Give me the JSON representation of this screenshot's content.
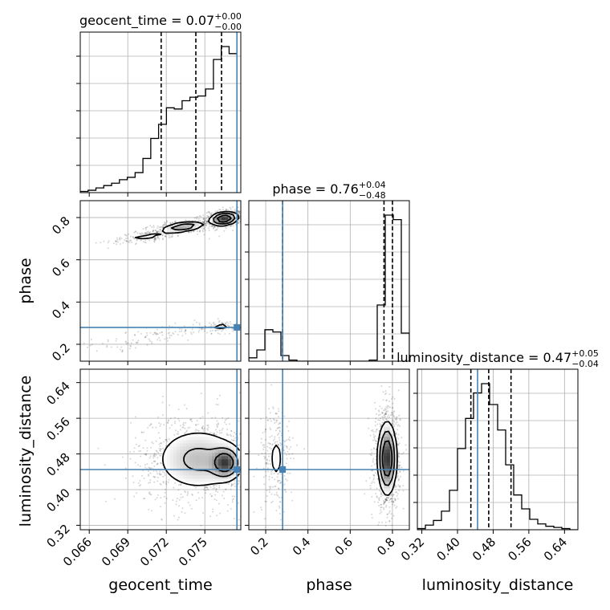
{
  "chart_data": {
    "type": "corner",
    "parameters": [
      "geocent_time",
      "phase",
      "luminosity_distance"
    ],
    "truth_color": "#4682b4",
    "line_color": "#000000",
    "titles": [
      {
        "parameter": "geocent_time",
        "lead": "geocent_time = 0.07",
        "plus": "+0.00",
        "minus": "−0.00"
      },
      {
        "parameter": "phase",
        "lead": "phase = 0.76",
        "plus": "+0.04",
        "minus": "−0.48"
      },
      {
        "parameter": "luminosity_distance",
        "lead": "luminosity_distance = 0.47",
        "plus": "+0.05",
        "minus": "−0.04"
      }
    ],
    "axes": {
      "geocent_time": {
        "range": [
          0.0653,
          0.0778
        ],
        "ticks": [
          0.066,
          0.069,
          0.072,
          0.075
        ],
        "tick_labels": [
          "0.066",
          "0.069",
          "0.072",
          "0.075"
        ]
      },
      "phase": {
        "range": [
          0.12,
          0.88
        ],
        "ticks": [
          0.2,
          0.4,
          0.6,
          0.8
        ],
        "tick_labels": [
          "0.2",
          "0.4",
          "0.6",
          "0.8"
        ]
      },
      "luminosity_distance": {
        "range": [
          0.31,
          0.67
        ],
        "ticks": [
          0.32,
          0.4,
          0.48,
          0.56,
          0.64
        ],
        "tick_labels": [
          "0.32",
          "0.40",
          "0.48",
          "0.56",
          "0.64"
        ]
      }
    },
    "truths": {
      "geocent_time": 0.0775,
      "phase": 0.28,
      "luminosity_distance": 0.445
    },
    "quantiles": {
      "geocent_time": [
        0.0716,
        0.0743,
        0.0763
      ],
      "phase": [
        0.28,
        0.76,
        0.8
      ],
      "luminosity_distance": [
        0.43,
        0.47,
        0.52
      ]
    },
    "histograms": {
      "geocent_time": {
        "edges": [
          0.0653,
          0.06591,
          0.06652,
          0.06713,
          0.06774,
          0.06835,
          0.06896,
          0.06957,
          0.07018,
          0.07079,
          0.0714,
          0.07201,
          0.07262,
          0.07323,
          0.07384,
          0.07445,
          0.07506,
          0.07567,
          0.07628,
          0.07689,
          0.0775
        ],
        "counts": [
          1,
          2,
          4,
          6,
          8,
          11,
          13,
          17,
          29,
          46,
          58,
          72,
          71,
          78,
          81,
          82,
          88,
          113,
          124,
          118
        ]
      },
      "phase": {
        "edges": [
          0.12,
          0.158,
          0.196,
          0.234,
          0.272,
          0.31,
          0.348,
          0.386,
          0.424,
          0.462,
          0.5,
          0.538,
          0.576,
          0.614,
          0.652,
          0.69,
          0.728,
          0.766,
          0.804,
          0.842,
          0.88
        ],
        "counts": [
          3,
          10,
          28,
          26,
          5,
          1,
          0,
          0,
          0,
          0,
          0,
          0,
          0,
          0,
          0,
          1,
          50,
          130,
          126,
          25
        ]
      },
      "luminosity_distance": {
        "edges": [
          0.31,
          0.328,
          0.346,
          0.364,
          0.382,
          0.4,
          0.418,
          0.436,
          0.454,
          0.472,
          0.49,
          0.508,
          0.526,
          0.544,
          0.562,
          0.58,
          0.598,
          0.616,
          0.634,
          0.652,
          0.67
        ],
        "counts": [
          1,
          4,
          8,
          16,
          34,
          70,
          96,
          118,
          126,
          108,
          86,
          56,
          30,
          18,
          9,
          5,
          3,
          2,
          1,
          0
        ]
      }
    },
    "modes_2d": {
      "phase_vs_geocent_time": [
        {
          "center": [
            0.0765,
            0.795
          ],
          "spread": [
            0.00055,
            0.016
          ],
          "corr": 0.2,
          "weight": 0.45
        },
        {
          "center": [
            0.0733,
            0.755
          ],
          "spread": [
            0.0009,
            0.014
          ],
          "corr": 0.5,
          "weight": 0.3
        },
        {
          "center": [
            0.0705,
            0.71
          ],
          "spread": [
            0.0011,
            0.013
          ],
          "corr": 0.6,
          "weight": 0.1
        },
        {
          "center": [
            0.0763,
            0.285
          ],
          "spread": [
            0.0007,
            0.012
          ],
          "corr": 0.2,
          "weight": 0.07
        },
        {
          "center": [
            0.0723,
            0.255
          ],
          "spread": [
            0.0013,
            0.016
          ],
          "corr": 0.6,
          "weight": 0.05
        },
        {
          "center": [
            0.0685,
            0.205
          ],
          "spread": [
            0.0014,
            0.018
          ],
          "corr": 0.6,
          "weight": 0.03
        }
      ],
      "luminosity_distance_vs_geocent_time": [
        {
          "center": [
            0.0745,
            0.468
          ],
          "spread": [
            0.0018,
            0.038
          ],
          "corr": 0.0,
          "weight": 0.75
        },
        {
          "center": [
            0.0766,
            0.46
          ],
          "spread": [
            0.0006,
            0.018
          ],
          "corr": 0.0,
          "weight": 0.25
        }
      ],
      "luminosity_distance_vs_phase": [
        {
          "center": [
            0.775,
            0.47
          ],
          "spread": [
            0.022,
            0.04
          ],
          "corr": 0.0,
          "weight": 0.82
        },
        {
          "center": [
            0.25,
            0.47
          ],
          "spread": [
            0.03,
            0.045
          ],
          "corr": 0.0,
          "weight": 0.18
        }
      ]
    }
  }
}
